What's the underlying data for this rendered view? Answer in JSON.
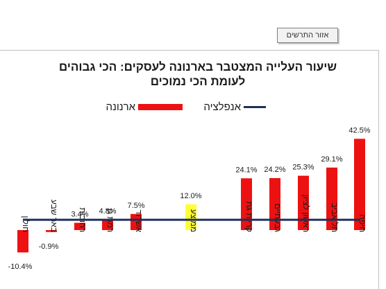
{
  "area_button": {
    "label": "אזור התרשים"
  },
  "chart_data": {
    "type": "bar",
    "title_lines": [
      "שיעור העלייה המצטבר בארנונה לעסקים: הכי גבוהים",
      "לעומת הכי נמוכים"
    ],
    "categories": [
      "חיפה",
      "תל אביב",
      "ראשון לציון",
      "גבעתיים",
      "קריית גת",
      "ממוצע",
      "אשדוד",
      "רמת גן",
      "רחובות",
      "באר שבע",
      "חולון"
    ],
    "values": [
      42.5,
      29.1,
      25.3,
      24.2,
      24.1,
      12.0,
      7.5,
      4.8,
      3.4,
      -0.9,
      -10.4
    ],
    "value_labels": [
      "42.5%",
      "29.1%",
      "25.3%",
      "24.2%",
      "24.1%",
      "12.0%",
      "7.5%",
      "4.8%",
      "3.4%",
      "-0.9%",
      "-10.4%"
    ],
    "bar_colors": [
      "#ee1111",
      "#ee1111",
      "#ee1111",
      "#ee1111",
      "#ee1111",
      "#ffff33",
      "#ee1111",
      "#ee1111",
      "#ee1111",
      "#ee1111",
      "#ee1111"
    ],
    "series": [
      {
        "name": "ארנונה",
        "color": "#ee1111",
        "kind": "bar"
      },
      {
        "name": "אנפלציה",
        "color": "#1f2f5a",
        "kind": "line",
        "value": 4.8
      }
    ],
    "legend": {
      "position": "top"
    },
    "grid": false,
    "axis_visible": false
  }
}
